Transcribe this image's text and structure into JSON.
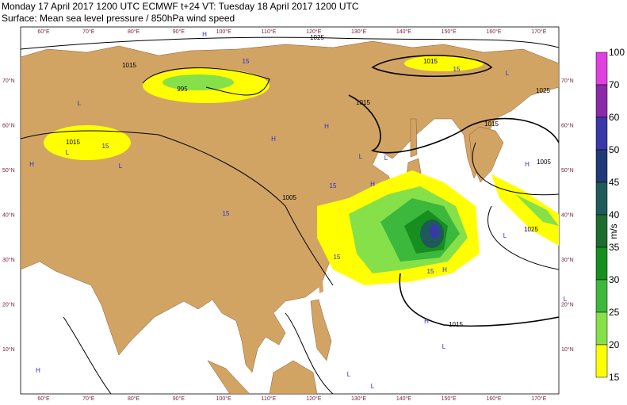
{
  "header": {
    "line1": "Monday 17 April 2017 1200 UTC  ECMWF  t+24  VT: Tuesday 18 April 2017 1200 UTC",
    "line2": "Surface: Mean sea level pressure / 850hPa wind speed"
  },
  "map": {
    "longitude_labels": [
      "60°E",
      "70°E",
      "80°E",
      "90°E",
      "100°E",
      "110°E",
      "120°E",
      "130°E",
      "140°E",
      "150°E",
      "160°E",
      "170°E"
    ],
    "latitude_labels": [
      "70°N",
      "60°N",
      "50°N",
      "40°N",
      "30°N",
      "20°N",
      "10°N"
    ],
    "isobar_labels": [
      "1025",
      "1015",
      "1015",
      "995",
      "1015",
      "1015",
      "1025",
      "1015",
      "1005",
      "1005",
      "1025",
      "1015",
      "15",
      "15",
      "15",
      "15",
      "15",
      "15",
      "15"
    ],
    "pressure_centers": [
      "H",
      "L",
      "L",
      "H",
      "L",
      "H",
      "H",
      "L",
      "H",
      "L",
      "L",
      "H",
      "L",
      "H",
      "L",
      "L",
      "H",
      "L",
      "H",
      "L"
    ]
  },
  "colorbar": {
    "levels": [
      100,
      70,
      60,
      50,
      45,
      40,
      35,
      30,
      25,
      20,
      15
    ],
    "unit": "m/s",
    "colors": [
      "#e040e0",
      "#8a2aa8",
      "#3838a8",
      "#203a78",
      "#1f5a5a",
      "#1d6d2e",
      "#168f1e",
      "#3cb83c",
      "#86e04a",
      "#ffff00"
    ]
  }
}
